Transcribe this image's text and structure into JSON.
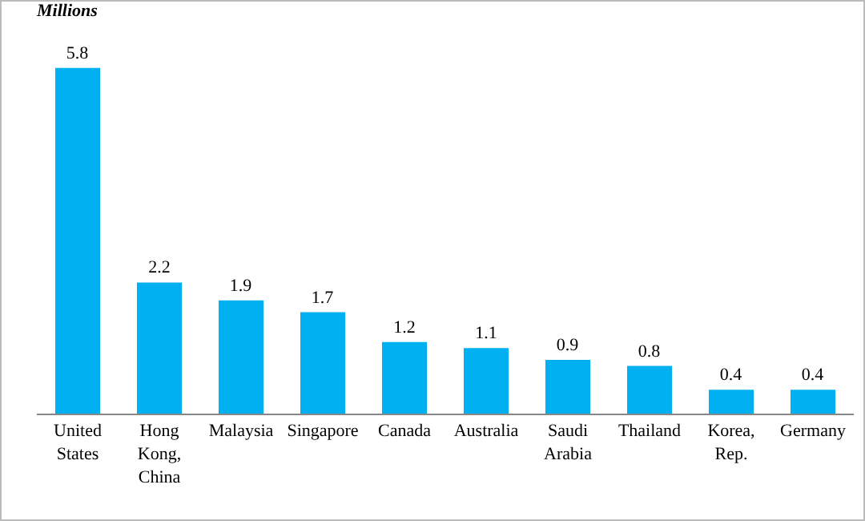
{
  "chart_data": {
    "type": "bar",
    "ylabel": "Millions",
    "categories": [
      "United States",
      "Hong Kong, China",
      "Malaysia",
      "Singapore",
      "Canada",
      "Australia",
      "Saudi Arabia",
      "Thailand",
      "Korea, Rep.",
      "Germany"
    ],
    "values": [
      5.8,
      2.2,
      1.9,
      1.7,
      1.2,
      1.1,
      0.9,
      0.8,
      0.4,
      0.4
    ],
    "color": "#00b0f0",
    "data_labels": true,
    "grid": false,
    "legend": false
  }
}
